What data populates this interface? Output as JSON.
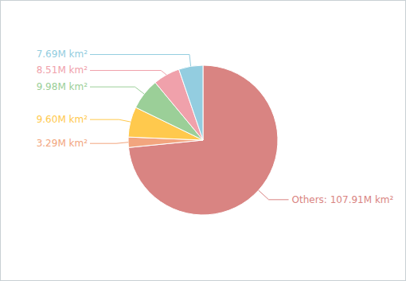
{
  "chart_data": {
    "type": "pie",
    "values": [
      107.91,
      3.29,
      9.6,
      9.98,
      8.51,
      7.69
    ],
    "value_labels": [
      "Others: 107.91M km²",
      "3.29M km²",
      "9.60M km²",
      "9.98M km²",
      "8.51M km²",
      "7.69M km²"
    ],
    "colors": [
      "#d98482",
      "#f2a57e",
      "#ffc94d",
      "#9bcf98",
      "#f0a1ab",
      "#93cde0"
    ],
    "data_labels": true
  }
}
